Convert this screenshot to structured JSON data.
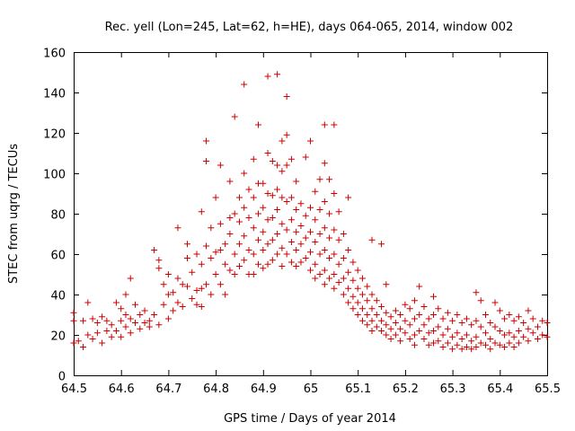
{
  "chart_data": {
    "type": "scatter",
    "title": "Rec. yell (Lon=245, Lat=62, h=HE), days 064-065, 2014, window 002",
    "xlabel": "GPS time / Days of year 2014",
    "ylabel": "STEC from uqrg / TECUs",
    "xlim": [
      64.5,
      65.5
    ],
    "ylim": [
      0,
      160
    ],
    "xticks": [
      "64.5",
      "64.6",
      "64.7",
      "64.8",
      "64.9",
      "65",
      "65.1",
      "65.2",
      "65.3",
      "65.4",
      "65.5"
    ],
    "yticks": [
      "0",
      "20",
      "40",
      "60",
      "80",
      "100",
      "120",
      "140",
      "160"
    ],
    "grid": false,
    "marker": "+",
    "color": "#cc0000",
    "points": [
      [
        64.5,
        16
      ],
      [
        64.5,
        27
      ],
      [
        64.5,
        31
      ],
      [
        64.51,
        17
      ],
      [
        64.52,
        27
      ],
      [
        64.52,
        14
      ],
      [
        64.53,
        36
      ],
      [
        64.53,
        20
      ],
      [
        64.54,
        28
      ],
      [
        64.54,
        18
      ],
      [
        64.55,
        26
      ],
      [
        64.55,
        21
      ],
      [
        64.56,
        29
      ],
      [
        64.56,
        16
      ],
      [
        64.57,
        22
      ],
      [
        64.57,
        27
      ],
      [
        64.58,
        19
      ],
      [
        64.58,
        25
      ],
      [
        64.59,
        36
      ],
      [
        64.59,
        22
      ],
      [
        64.6,
        27
      ],
      [
        64.6,
        33
      ],
      [
        64.6,
        19
      ],
      [
        64.61,
        40
      ],
      [
        64.61,
        30
      ],
      [
        64.61,
        24
      ],
      [
        64.62,
        48
      ],
      [
        64.62,
        28
      ],
      [
        64.62,
        21
      ],
      [
        64.63,
        35
      ],
      [
        64.63,
        26
      ],
      [
        64.64,
        30
      ],
      [
        64.64,
        23
      ],
      [
        64.65,
        26
      ],
      [
        64.65,
        32
      ],
      [
        64.66,
        27
      ],
      [
        64.66,
        24
      ],
      [
        64.67,
        62
      ],
      [
        64.67,
        30
      ],
      [
        64.68,
        57
      ],
      [
        64.68,
        53
      ],
      [
        64.68,
        25
      ],
      [
        64.69,
        45
      ],
      [
        64.69,
        35
      ],
      [
        64.7,
        50
      ],
      [
        64.7,
        40
      ],
      [
        64.7,
        28
      ],
      [
        64.71,
        41
      ],
      [
        64.71,
        32
      ],
      [
        64.72,
        73
      ],
      [
        64.72,
        48
      ],
      [
        64.72,
        36
      ],
      [
        64.73,
        45
      ],
      [
        64.73,
        34
      ],
      [
        64.74,
        65
      ],
      [
        64.74,
        58
      ],
      [
        64.74,
        44
      ],
      [
        64.75,
        38
      ],
      [
        64.75,
        51
      ],
      [
        64.76,
        60
      ],
      [
        64.76,
        42
      ],
      [
        64.76,
        35
      ],
      [
        64.77,
        81
      ],
      [
        64.77,
        55
      ],
      [
        64.77,
        43
      ],
      [
        64.77,
        34
      ],
      [
        64.78,
        116
      ],
      [
        64.78,
        106
      ],
      [
        64.78,
        64
      ],
      [
        64.78,
        45
      ],
      [
        64.79,
        73
      ],
      [
        64.79,
        58
      ],
      [
        64.79,
        40
      ],
      [
        64.8,
        61
      ],
      [
        64.8,
        88
      ],
      [
        64.8,
        50
      ],
      [
        64.81,
        104
      ],
      [
        64.81,
        75
      ],
      [
        64.81,
        62
      ],
      [
        64.81,
        45
      ],
      [
        64.82,
        65
      ],
      [
        64.82,
        55
      ],
      [
        64.82,
        40
      ],
      [
        64.83,
        96
      ],
      [
        64.83,
        78
      ],
      [
        64.83,
        70
      ],
      [
        64.83,
        52
      ],
      [
        64.84,
        128
      ],
      [
        64.84,
        80
      ],
      [
        64.84,
        60
      ],
      [
        64.84,
        50
      ],
      [
        64.85,
        88
      ],
      [
        64.85,
        76
      ],
      [
        64.85,
        65
      ],
      [
        64.85,
        54
      ],
      [
        64.86,
        144
      ],
      [
        64.86,
        100
      ],
      [
        64.86,
        83
      ],
      [
        64.86,
        69
      ],
      [
        64.86,
        57
      ],
      [
        64.87,
        92
      ],
      [
        64.87,
        78
      ],
      [
        64.87,
        62
      ],
      [
        64.87,
        50
      ],
      [
        64.88,
        107
      ],
      [
        64.88,
        88
      ],
      [
        64.88,
        73
      ],
      [
        64.88,
        60
      ],
      [
        64.88,
        50
      ],
      [
        64.89,
        124
      ],
      [
        64.89,
        95
      ],
      [
        64.89,
        80
      ],
      [
        64.89,
        67
      ],
      [
        64.89,
        55
      ],
      [
        64.9,
        95
      ],
      [
        64.9,
        83
      ],
      [
        64.9,
        71
      ],
      [
        64.9,
        62
      ],
      [
        64.9,
        53
      ],
      [
        64.91,
        148
      ],
      [
        64.91,
        110
      ],
      [
        64.91,
        90
      ],
      [
        64.91,
        77
      ],
      [
        64.91,
        65
      ],
      [
        64.91,
        55
      ],
      [
        64.92,
        106
      ],
      [
        64.92,
        89
      ],
      [
        64.92,
        78
      ],
      [
        64.92,
        67
      ],
      [
        64.92,
        57
      ],
      [
        64.93,
        149
      ],
      [
        64.93,
        104
      ],
      [
        64.93,
        92
      ],
      [
        64.93,
        82
      ],
      [
        64.93,
        70
      ],
      [
        64.93,
        60
      ],
      [
        64.94,
        116
      ],
      [
        64.94,
        101
      ],
      [
        64.94,
        88
      ],
      [
        64.94,
        75
      ],
      [
        64.94,
        63
      ],
      [
        64.94,
        54
      ],
      [
        64.95,
        138
      ],
      [
        64.95,
        119
      ],
      [
        64.95,
        104
      ],
      [
        64.95,
        86
      ],
      [
        64.95,
        72
      ],
      [
        64.95,
        60
      ],
      [
        64.96,
        107
      ],
      [
        64.96,
        88
      ],
      [
        64.96,
        77
      ],
      [
        64.96,
        66
      ],
      [
        64.96,
        56
      ],
      [
        64.97,
        96
      ],
      [
        64.97,
        82
      ],
      [
        64.97,
        71
      ],
      [
        64.97,
        62
      ],
      [
        64.97,
        54
      ],
      [
        64.98,
        85
      ],
      [
        64.98,
        74
      ],
      [
        64.98,
        65
      ],
      [
        64.98,
        56
      ],
      [
        64.99,
        108
      ],
      [
        64.99,
        79
      ],
      [
        64.99,
        68
      ],
      [
        64.99,
        58
      ],
      [
        65.0,
        116
      ],
      [
        65.0,
        83
      ],
      [
        65.0,
        71
      ],
      [
        65.0,
        61
      ],
      [
        65.0,
        52
      ],
      [
        65.01,
        91
      ],
      [
        65.01,
        77
      ],
      [
        65.01,
        66
      ],
      [
        65.01,
        55
      ],
      [
        65.01,
        48
      ],
      [
        65.02,
        97
      ],
      [
        65.02,
        82
      ],
      [
        65.02,
        70
      ],
      [
        65.02,
        60
      ],
      [
        65.02,
        50
      ],
      [
        65.03,
        124
      ],
      [
        65.03,
        105
      ],
      [
        65.03,
        86
      ],
      [
        65.03,
        73
      ],
      [
        65.03,
        62
      ],
      [
        65.03,
        52
      ],
      [
        65.03,
        45
      ],
      [
        65.04,
        97
      ],
      [
        65.04,
        80
      ],
      [
        65.04,
        68
      ],
      [
        65.04,
        58
      ],
      [
        65.04,
        48
      ],
      [
        65.05,
        124
      ],
      [
        65.05,
        90
      ],
      [
        65.05,
        72
      ],
      [
        65.05,
        60
      ],
      [
        65.05,
        50
      ],
      [
        65.05,
        43
      ],
      [
        65.06,
        81
      ],
      [
        65.06,
        67
      ],
      [
        65.06,
        55
      ],
      [
        65.06,
        46
      ],
      [
        65.07,
        70
      ],
      [
        65.07,
        58
      ],
      [
        65.07,
        48
      ],
      [
        65.07,
        40
      ],
      [
        65.08,
        88
      ],
      [
        65.08,
        62
      ],
      [
        65.08,
        51
      ],
      [
        65.08,
        43
      ],
      [
        65.08,
        36
      ],
      [
        65.09,
        56
      ],
      [
        65.09,
        47
      ],
      [
        65.09,
        39
      ],
      [
        65.09,
        33
      ],
      [
        65.1,
        52
      ],
      [
        65.1,
        43
      ],
      [
        65.1,
        36
      ],
      [
        65.1,
        30
      ],
      [
        65.11,
        48
      ],
      [
        65.11,
        40
      ],
      [
        65.11,
        33
      ],
      [
        65.11,
        27
      ],
      [
        65.12,
        44
      ],
      [
        65.12,
        37
      ],
      [
        65.12,
        30
      ],
      [
        65.12,
        25
      ],
      [
        65.13,
        67
      ],
      [
        65.13,
        40
      ],
      [
        65.13,
        33
      ],
      [
        65.13,
        27
      ],
      [
        65.13,
        22
      ],
      [
        65.14,
        37
      ],
      [
        65.14,
        30
      ],
      [
        65.14,
        24
      ],
      [
        65.15,
        65
      ],
      [
        65.15,
        34
      ],
      [
        65.15,
        27
      ],
      [
        65.15,
        22
      ],
      [
        65.16,
        45
      ],
      [
        65.16,
        31
      ],
      [
        65.16,
        25
      ],
      [
        65.16,
        20
      ],
      [
        65.17,
        29
      ],
      [
        65.17,
        23
      ],
      [
        65.17,
        18
      ],
      [
        65.18,
        32
      ],
      [
        65.18,
        26
      ],
      [
        65.18,
        20
      ],
      [
        65.19,
        30
      ],
      [
        65.19,
        23
      ],
      [
        65.19,
        17
      ],
      [
        65.2,
        35
      ],
      [
        65.2,
        27
      ],
      [
        65.2,
        21
      ],
      [
        65.21,
        33
      ],
      [
        65.21,
        25
      ],
      [
        65.21,
        18
      ],
      [
        65.22,
        37
      ],
      [
        65.22,
        28
      ],
      [
        65.22,
        20
      ],
      [
        65.22,
        15
      ],
      [
        65.23,
        44
      ],
      [
        65.23,
        30
      ],
      [
        65.23,
        22
      ],
      [
        65.24,
        34
      ],
      [
        65.24,
        25
      ],
      [
        65.24,
        18
      ],
      [
        65.25,
        28
      ],
      [
        65.25,
        21
      ],
      [
        65.25,
        15
      ],
      [
        65.26,
        39
      ],
      [
        65.26,
        30
      ],
      [
        65.26,
        22
      ],
      [
        65.26,
        16
      ],
      [
        65.27,
        33
      ],
      [
        65.27,
        24
      ],
      [
        65.27,
        17
      ],
      [
        65.28,
        28
      ],
      [
        65.28,
        20
      ],
      [
        65.28,
        14
      ],
      [
        65.29,
        31
      ],
      [
        65.29,
        23
      ],
      [
        65.29,
        16
      ],
      [
        65.3,
        27
      ],
      [
        65.3,
        19
      ],
      [
        65.3,
        13
      ],
      [
        65.31,
        30
      ],
      [
        65.31,
        21
      ],
      [
        65.31,
        15
      ],
      [
        65.32,
        26
      ],
      [
        65.32,
        18
      ],
      [
        65.32,
        13
      ],
      [
        65.33,
        28
      ],
      [
        65.33,
        20
      ],
      [
        65.33,
        14
      ],
      [
        65.34,
        25
      ],
      [
        65.34,
        17
      ],
      [
        65.34,
        13
      ],
      [
        65.35,
        41
      ],
      [
        65.35,
        27
      ],
      [
        65.35,
        19
      ],
      [
        65.35,
        14
      ],
      [
        65.36,
        37
      ],
      [
        65.36,
        24
      ],
      [
        65.36,
        16
      ],
      [
        65.37,
        30
      ],
      [
        65.37,
        21
      ],
      [
        65.37,
        15
      ],
      [
        65.38,
        26
      ],
      [
        65.38,
        18
      ],
      [
        65.38,
        13
      ],
      [
        65.39,
        36
      ],
      [
        65.39,
        24
      ],
      [
        65.39,
        16
      ],
      [
        65.4,
        32
      ],
      [
        65.4,
        22
      ],
      [
        65.4,
        15
      ],
      [
        65.41,
        28
      ],
      [
        65.41,
        20
      ],
      [
        65.41,
        14
      ],
      [
        65.42,
        30
      ],
      [
        65.42,
        21
      ],
      [
        65.42,
        16
      ],
      [
        65.43,
        27
      ],
      [
        65.43,
        19
      ],
      [
        65.43,
        14
      ],
      [
        65.44,
        29
      ],
      [
        65.44,
        22
      ],
      [
        65.44,
        16
      ],
      [
        65.45,
        26
      ],
      [
        65.45,
        19
      ],
      [
        65.46,
        32
      ],
      [
        65.46,
        23
      ],
      [
        65.46,
        17
      ],
      [
        65.47,
        28
      ],
      [
        65.47,
        21
      ],
      [
        65.48,
        24
      ],
      [
        65.48,
        18
      ],
      [
        65.49,
        27
      ],
      [
        65.49,
        20
      ],
      [
        65.5,
        26
      ],
      [
        65.5,
        19
      ]
    ]
  }
}
